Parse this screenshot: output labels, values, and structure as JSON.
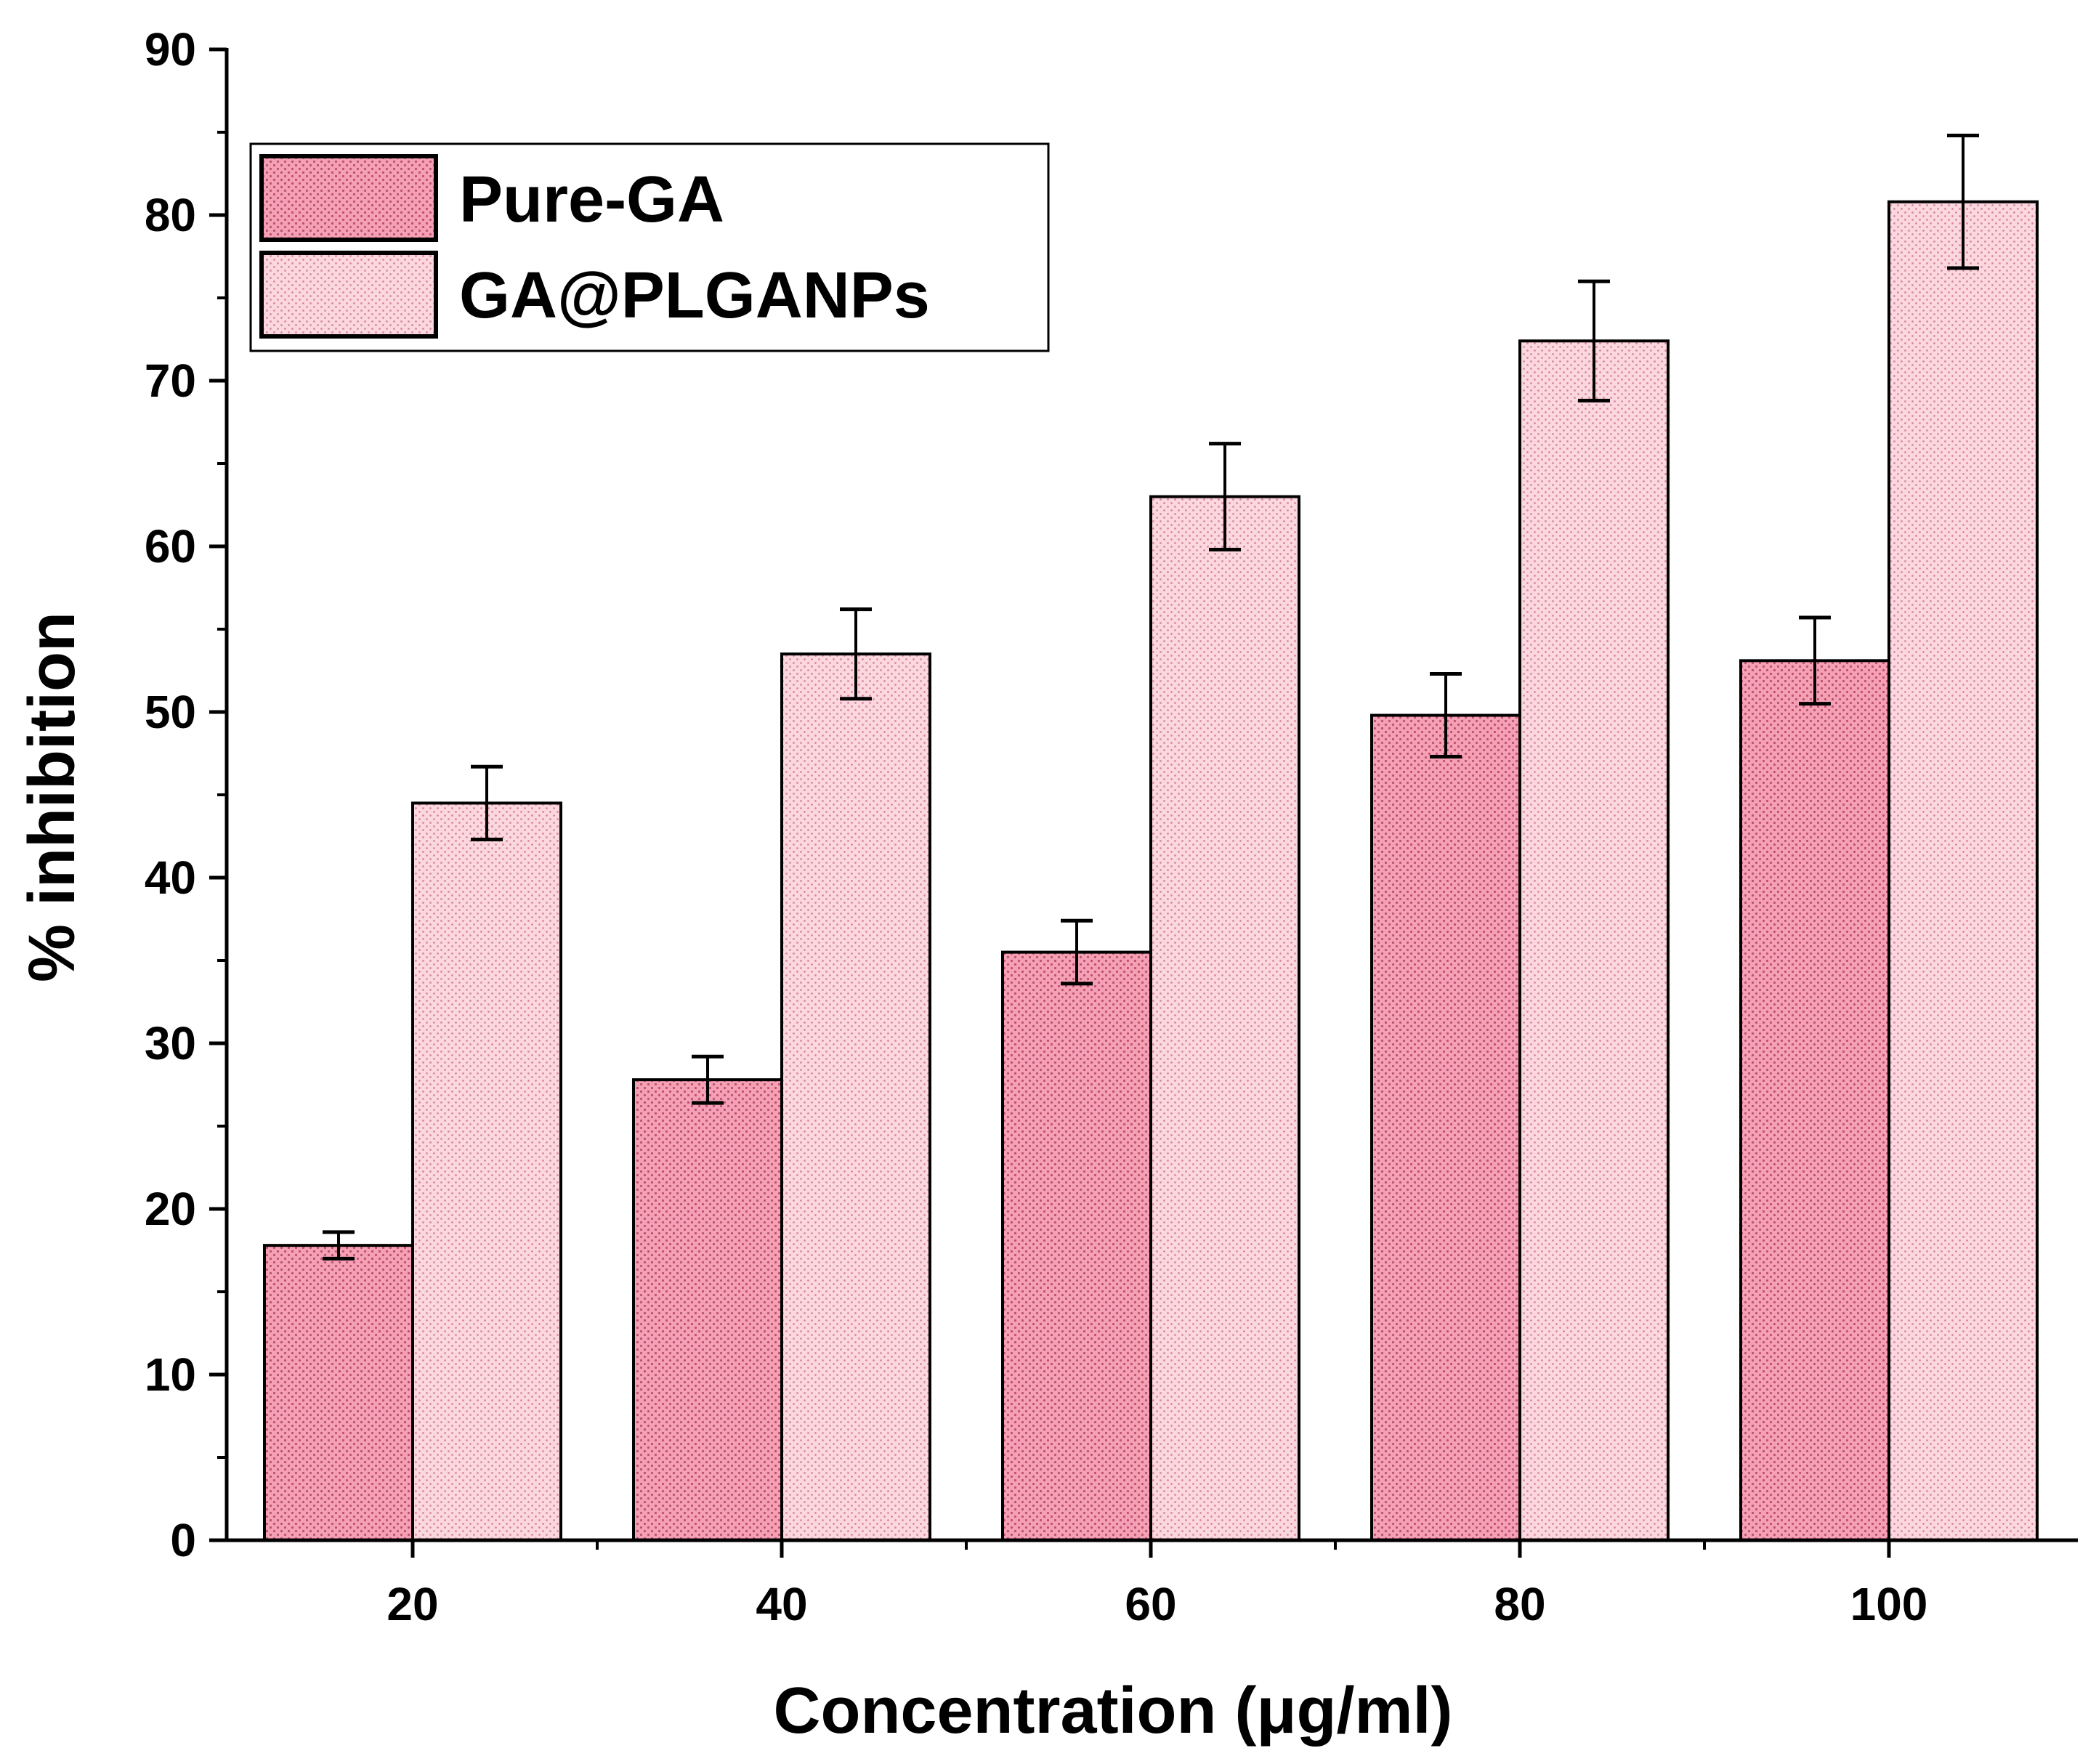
{
  "chart_data": {
    "type": "bar",
    "title": "",
    "xlabel": "Concentration (μg/ml)",
    "ylabel": "% inhibition",
    "categories": [
      "20",
      "40",
      "60",
      "80",
      "100"
    ],
    "series": [
      {
        "name": "Pure-GA",
        "values": [
          17.8,
          27.8,
          35.5,
          49.8,
          53.1
        ],
        "errors": [
          0.8,
          1.4,
          1.9,
          2.5,
          2.6
        ],
        "color": "#f4a0b5",
        "dot_color": "#c0506e"
      },
      {
        "name": "GA@PLGANPs",
        "values": [
          44.5,
          53.5,
          63.0,
          72.4,
          80.8
        ],
        "errors": [
          2.2,
          2.7,
          3.2,
          3.6,
          4.0
        ],
        "color": "#fbd7df",
        "dot_color": "#d98799"
      }
    ],
    "ylim": [
      0,
      90
    ],
    "yticks": [
      0,
      10,
      20,
      30,
      40,
      50,
      60,
      70,
      80,
      90
    ],
    "grid": false,
    "legend_position": "top-left"
  }
}
